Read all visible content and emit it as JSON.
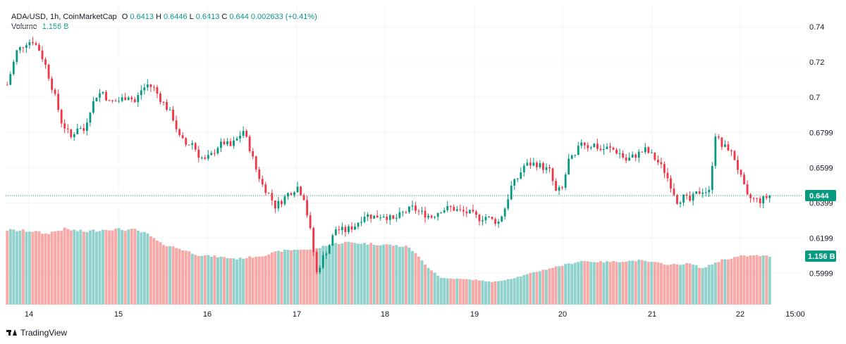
{
  "header": {
    "pair": "ADA/USD, 1h, CoinMarketCap",
    "o_label": "O",
    "o": "0.6413",
    "h_label": "H",
    "h": "0.6446",
    "l_label": "L",
    "l": "0.6413",
    "c_label": "C",
    "c": "0.644",
    "change": "0.002633 (+0.41%)",
    "volume_label": "Volume",
    "volume": "1.156 B"
  },
  "price_badge": "0.644",
  "volume_badge": "1.156 B",
  "footer": {
    "brand": "TradingView"
  },
  "colors": {
    "up": "#089981",
    "down": "#f23645",
    "vol_up": "#92d2cc",
    "vol_down": "#f7a9a7",
    "grid": "#f0f3fa"
  },
  "chart_data": {
    "type": "candlestick",
    "title": "ADA/USD, 1h, CoinMarketCap",
    "y_ticks": [
      "0.74",
      "0.72",
      "0.7",
      "0.6799",
      "0.6599",
      "0.6399",
      "0.6199",
      "0.5999"
    ],
    "x_ticks": [
      "14",
      "15",
      "16",
      "17",
      "18",
      "19",
      "20",
      "21",
      "22",
      "15:00"
    ],
    "ylim": [
      0.5885,
      0.746
    ],
    "last_price": 0.644,
    "waypoints": [
      [
        0,
        0.707
      ],
      [
        3,
        0.726
      ],
      [
        6,
        0.731
      ],
      [
        8,
        0.732
      ],
      [
        10,
        0.727
      ],
      [
        12,
        0.718
      ],
      [
        15,
        0.7
      ],
      [
        17,
        0.686
      ],
      [
        20,
        0.677
      ],
      [
        22,
        0.683
      ],
      [
        24,
        0.681
      ],
      [
        26,
        0.693
      ],
      [
        28,
        0.701
      ],
      [
        30,
        0.703
      ],
      [
        32,
        0.697
      ],
      [
        35,
        0.698
      ],
      [
        38,
        0.701
      ],
      [
        40,
        0.697
      ],
      [
        42,
        0.704
      ],
      [
        44,
        0.707
      ],
      [
        46,
        0.705
      ],
      [
        48,
        0.699
      ],
      [
        50,
        0.694
      ],
      [
        52,
        0.688
      ],
      [
        54,
        0.677
      ],
      [
        56,
        0.673
      ],
      [
        58,
        0.674
      ],
      [
        60,
        0.667
      ],
      [
        62,
        0.664
      ],
      [
        64,
        0.667
      ],
      [
        66,
        0.672
      ],
      [
        68,
        0.674
      ],
      [
        70,
        0.672
      ],
      [
        72,
        0.676
      ],
      [
        74,
        0.681
      ],
      [
        76,
        0.671
      ],
      [
        78,
        0.659
      ],
      [
        80,
        0.65
      ],
      [
        82,
        0.645
      ],
      [
        84,
        0.638
      ],
      [
        86,
        0.641
      ],
      [
        88,
        0.645
      ],
      [
        91,
        0.649
      ],
      [
        93,
        0.643
      ],
      [
        95,
        0.624
      ],
      [
        97,
        0.6
      ],
      [
        99,
        0.609
      ],
      [
        101,
        0.616
      ],
      [
        103,
        0.625
      ],
      [
        106,
        0.624
      ],
      [
        109,
        0.627
      ],
      [
        112,
        0.633
      ],
      [
        115,
        0.632
      ],
      [
        118,
        0.633
      ],
      [
        121,
        0.63
      ],
      [
        124,
        0.634
      ],
      [
        127,
        0.637
      ],
      [
        130,
        0.634
      ],
      [
        133,
        0.632
      ],
      [
        136,
        0.636
      ],
      [
        139,
        0.637
      ],
      [
        142,
        0.635
      ],
      [
        145,
        0.634
      ],
      [
        148,
        0.631
      ],
      [
        150,
        0.632
      ],
      [
        152,
        0.63
      ],
      [
        154,
        0.629
      ],
      [
        156,
        0.637
      ],
      [
        158,
        0.649
      ],
      [
        160,
        0.654
      ],
      [
        162,
        0.661
      ],
      [
        164,
        0.662
      ],
      [
        166,
        0.662
      ],
      [
        168,
        0.66
      ],
      [
        170,
        0.658
      ],
      [
        172,
        0.646
      ],
      [
        174,
        0.648
      ],
      [
        176,
        0.664
      ],
      [
        178,
        0.666
      ],
      [
        180,
        0.675
      ],
      [
        182,
        0.672
      ],
      [
        184,
        0.673
      ],
      [
        186,
        0.67
      ],
      [
        188,
        0.671
      ],
      [
        190,
        0.67
      ],
      [
        192,
        0.668
      ],
      [
        194,
        0.664
      ],
      [
        196,
        0.666
      ],
      [
        198,
        0.668
      ],
      [
        200,
        0.67
      ],
      [
        202,
        0.667
      ],
      [
        204,
        0.663
      ],
      [
        206,
        0.658
      ],
      [
        208,
        0.65
      ],
      [
        210,
        0.641
      ],
      [
        212,
        0.643
      ],
      [
        214,
        0.641
      ],
      [
        216,
        0.645
      ],
      [
        218,
        0.647
      ],
      [
        220,
        0.646
      ],
      [
        222,
        0.679
      ],
      [
        224,
        0.672
      ],
      [
        226,
        0.671
      ],
      [
        228,
        0.665
      ],
      [
        230,
        0.654
      ],
      [
        232,
        0.643
      ],
      [
        234,
        0.642
      ],
      [
        236,
        0.641
      ],
      [
        238,
        0.643
      ],
      [
        239,
        0.644
      ]
    ],
    "volume_waypoints": [
      [
        0,
        1.4
      ],
      [
        8,
        1.38
      ],
      [
        12,
        1.33
      ],
      [
        18,
        1.42
      ],
      [
        24,
        1.37
      ],
      [
        32,
        1.42
      ],
      [
        40,
        1.4
      ],
      [
        44,
        1.32
      ],
      [
        48,
        1.15
      ],
      [
        54,
        1.05
      ],
      [
        60,
        0.93
      ],
      [
        66,
        0.9
      ],
      [
        72,
        0.86
      ],
      [
        80,
        0.92
      ],
      [
        86,
        1.01
      ],
      [
        92,
        1.04
      ],
      [
        96,
        1.02
      ],
      [
        100,
        1.12
      ],
      [
        106,
        1.17
      ],
      [
        112,
        1.15
      ],
      [
        120,
        1.12
      ],
      [
        126,
        1.08
      ],
      [
        132,
        0.7
      ],
      [
        136,
        0.5
      ],
      [
        142,
        0.48
      ],
      [
        148,
        0.46
      ],
      [
        152,
        0.42
      ],
      [
        158,
        0.49
      ],
      [
        162,
        0.55
      ],
      [
        166,
        0.62
      ],
      [
        172,
        0.71
      ],
      [
        180,
        0.82
      ],
      [
        186,
        0.8
      ],
      [
        192,
        0.81
      ],
      [
        198,
        0.83
      ],
      [
        204,
        0.78
      ],
      [
        208,
        0.75
      ],
      [
        214,
        0.77
      ],
      [
        218,
        0.68
      ],
      [
        224,
        0.84
      ],
      [
        230,
        0.91
      ],
      [
        235,
        0.92
      ],
      [
        239,
        0.91
      ]
    ],
    "volume_ylim": [
      0,
      5
    ]
  }
}
